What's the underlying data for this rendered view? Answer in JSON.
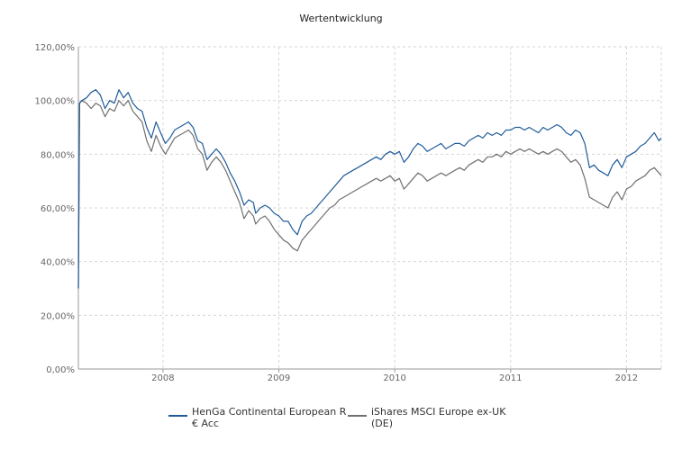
{
  "chart_data": {
    "type": "line",
    "title": "Wertentwicklung",
    "xlabel": "",
    "ylabel": "",
    "x_range": [
      2007.27,
      2012.3
    ],
    "ylim": [
      0,
      120
    ],
    "y_ticks": [
      0,
      20,
      40,
      60,
      80,
      100,
      120
    ],
    "y_tick_labels": [
      "0,00%",
      "20,00%",
      "40,00%",
      "60,00%",
      "80,00%",
      "100,00%",
      "120,00%"
    ],
    "x_ticks": [
      2008,
      2009,
      2010,
      2011,
      2012
    ],
    "x_tick_labels": [
      "2008",
      "2009",
      "2010",
      "2011",
      "2012"
    ],
    "grid": true,
    "legend_position": "bottom",
    "series": [
      {
        "name": "HenGa Continental European R € Acc",
        "color": "#1f5c99",
        "x": [
          2007.27,
          2007.28,
          2007.3,
          2007.34,
          2007.38,
          2007.42,
          2007.46,
          2007.5,
          2007.54,
          2007.58,
          2007.62,
          2007.66,
          2007.7,
          2007.74,
          2007.78,
          2007.82,
          2007.86,
          2007.9,
          2007.94,
          2007.98,
          2008.02,
          2008.06,
          2008.1,
          2008.14,
          2008.18,
          2008.22,
          2008.26,
          2008.3,
          2008.34,
          2008.38,
          2008.42,
          2008.46,
          2008.5,
          2008.54,
          2008.58,
          2008.62,
          2008.66,
          2008.7,
          2008.74,
          2008.78,
          2008.8,
          2008.84,
          2008.88,
          2008.92,
          2008.96,
          2009.0,
          2009.04,
          2009.08,
          2009.12,
          2009.16,
          2009.2,
          2009.24,
          2009.28,
          2009.32,
          2009.36,
          2009.4,
          2009.44,
          2009.48,
          2009.52,
          2009.56,
          2009.6,
          2009.64,
          2009.68,
          2009.72,
          2009.76,
          2009.8,
          2009.84,
          2009.88,
          2009.92,
          2009.96,
          2010.0,
          2010.04,
          2010.08,
          2010.12,
          2010.16,
          2010.2,
          2010.24,
          2010.28,
          2010.32,
          2010.36,
          2010.4,
          2010.44,
          2010.48,
          2010.52,
          2010.56,
          2010.6,
          2010.64,
          2010.68,
          2010.72,
          2010.76,
          2010.8,
          2010.84,
          2010.88,
          2010.92,
          2010.96,
          2011.0,
          2011.04,
          2011.08,
          2011.12,
          2011.16,
          2011.2,
          2011.24,
          2011.28,
          2011.32,
          2011.36,
          2011.4,
          2011.44,
          2011.48,
          2011.52,
          2011.56,
          2011.6,
          2011.64,
          2011.68,
          2011.72,
          2011.76,
          2011.8,
          2011.84,
          2011.88,
          2011.92,
          2011.96,
          2012.0,
          2012.04,
          2012.08,
          2012.12,
          2012.16,
          2012.2,
          2012.24,
          2012.28,
          2012.3
        ],
        "values": [
          30,
          99,
          100,
          101,
          103,
          104,
          102,
          97,
          100,
          99,
          104,
          101,
          103,
          99,
          97,
          96,
          90,
          86,
          92,
          88,
          84,
          86,
          89,
          90,
          91,
          92,
          90,
          85,
          84,
          78,
          80,
          82,
          80,
          77,
          73,
          70,
          66,
          61,
          63,
          62,
          58,
          60,
          61,
          60,
          58,
          57,
          55,
          55,
          52,
          50,
          55,
          57,
          58,
          60,
          62,
          64,
          66,
          68,
          70,
          72,
          73,
          74,
          75,
          76,
          77,
          78,
          79,
          78,
          80,
          81,
          80,
          81,
          77,
          79,
          82,
          84,
          83,
          81,
          82,
          83,
          84,
          82,
          83,
          84,
          84,
          83,
          85,
          86,
          87,
          86,
          88,
          87,
          88,
          87,
          89,
          89,
          90,
          90,
          89,
          90,
          89,
          88,
          90,
          89,
          90,
          91,
          90,
          88,
          87,
          89,
          88,
          84,
          75,
          76,
          74,
          73,
          72,
          76,
          78,
          75,
          79,
          80,
          81,
          83,
          84,
          86,
          88,
          85,
          86
        ]
      },
      {
        "name": "iShares MSCI Europe ex-UK (DE)",
        "color": "#707070",
        "x": [
          2007.27,
          2007.28,
          2007.3,
          2007.34,
          2007.38,
          2007.42,
          2007.46,
          2007.5,
          2007.54,
          2007.58,
          2007.62,
          2007.66,
          2007.7,
          2007.74,
          2007.78,
          2007.82,
          2007.86,
          2007.9,
          2007.94,
          2007.98,
          2008.02,
          2008.06,
          2008.1,
          2008.14,
          2008.18,
          2008.22,
          2008.26,
          2008.3,
          2008.34,
          2008.38,
          2008.42,
          2008.46,
          2008.5,
          2008.54,
          2008.58,
          2008.62,
          2008.66,
          2008.7,
          2008.74,
          2008.78,
          2008.8,
          2008.84,
          2008.88,
          2008.92,
          2008.96,
          2009.0,
          2009.04,
          2009.08,
          2009.12,
          2009.16,
          2009.2,
          2009.24,
          2009.28,
          2009.32,
          2009.36,
          2009.4,
          2009.44,
          2009.48,
          2009.52,
          2009.56,
          2009.6,
          2009.64,
          2009.68,
          2009.72,
          2009.76,
          2009.8,
          2009.84,
          2009.88,
          2009.92,
          2009.96,
          2010.0,
          2010.04,
          2010.08,
          2010.12,
          2010.16,
          2010.2,
          2010.24,
          2010.28,
          2010.32,
          2010.36,
          2010.4,
          2010.44,
          2010.48,
          2010.52,
          2010.56,
          2010.6,
          2010.64,
          2010.68,
          2010.72,
          2010.76,
          2010.8,
          2010.84,
          2010.88,
          2010.92,
          2010.96,
          2011.0,
          2011.04,
          2011.08,
          2011.12,
          2011.16,
          2011.2,
          2011.24,
          2011.28,
          2011.32,
          2011.36,
          2011.4,
          2011.44,
          2011.48,
          2011.52,
          2011.56,
          2011.6,
          2011.64,
          2011.68,
          2011.72,
          2011.76,
          2011.8,
          2011.84,
          2011.88,
          2011.92,
          2011.96,
          2012.0,
          2012.04,
          2012.08,
          2012.12,
          2012.16,
          2012.2,
          2012.24,
          2012.28,
          2012.3
        ],
        "values": [
          30,
          99,
          100,
          99,
          97,
          99,
          98,
          94,
          97,
          96,
          100,
          98,
          100,
          96,
          94,
          92,
          85,
          81,
          87,
          83,
          80,
          83,
          86,
          87,
          88,
          89,
          87,
          82,
          80,
          74,
          77,
          79,
          77,
          74,
          70,
          66,
          62,
          56,
          59,
          57,
          54,
          56,
          57,
          55,
          52,
          50,
          48,
          47,
          45,
          44,
          48,
          50,
          52,
          54,
          56,
          58,
          60,
          61,
          63,
          64,
          65,
          66,
          67,
          68,
          69,
          70,
          71,
          70,
          71,
          72,
          70,
          71,
          67,
          69,
          71,
          73,
          72,
          70,
          71,
          72,
          73,
          72,
          73,
          74,
          75,
          74,
          76,
          77,
          78,
          77,
          79,
          79,
          80,
          79,
          81,
          80,
          81,
          82,
          81,
          82,
          81,
          80,
          81,
          80,
          81,
          82,
          81,
          79,
          77,
          78,
          76,
          71,
          64,
          63,
          62,
          61,
          60,
          64,
          66,
          63,
          67,
          68,
          70,
          71,
          72,
          74,
          75,
          73,
          72
        ]
      }
    ]
  }
}
